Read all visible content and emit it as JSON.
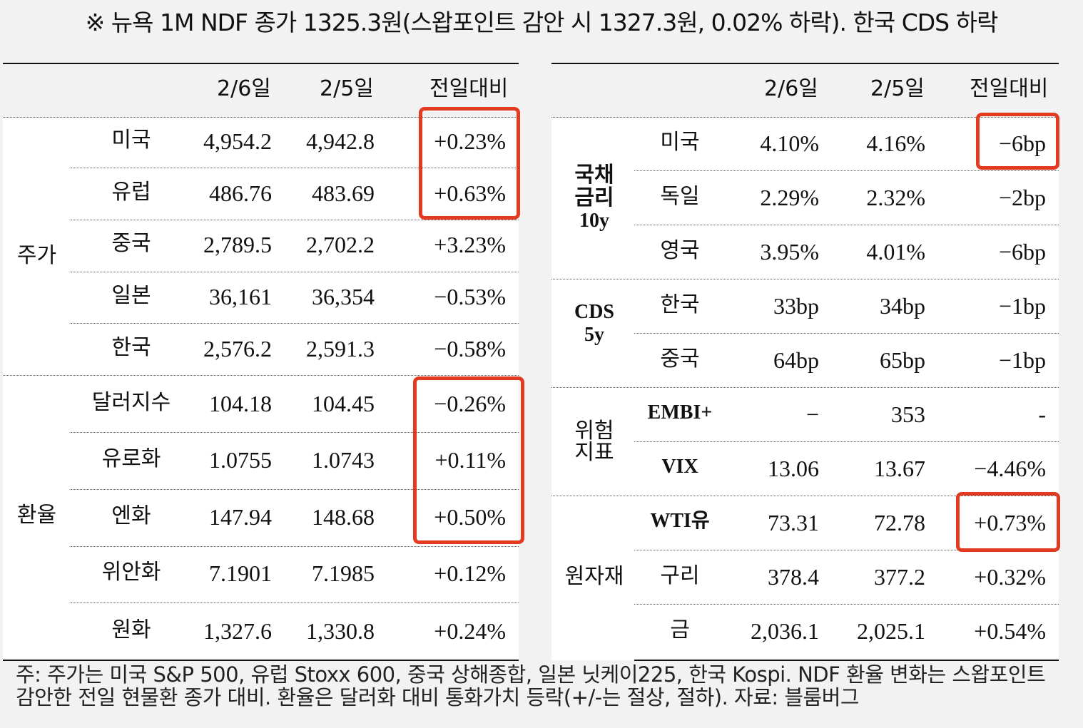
{
  "headline": "※ 뉴욕 1M NDF 종가 1325.3원(스왑포인트 감안 시 1327.3원, 0.02% 하락). 한국 CDS 하락",
  "left_table": {
    "headers": [
      "2/6일",
      "2/5일",
      "전일대비"
    ],
    "groups": [
      {
        "name": "주가",
        "rows": [
          {
            "label": "미국",
            "d1": "4,954.2",
            "d2": "4,942.8",
            "chg": "+0.23%"
          },
          {
            "label": "유럽",
            "d1": "486.76",
            "d2": "483.69",
            "chg": "+0.63%"
          },
          {
            "label": "중국",
            "d1": "2,789.5",
            "d2": "2,702.2",
            "chg": "+3.23%"
          },
          {
            "label": "일본",
            "d1": "36,161",
            "d2": "36,354",
            "chg": "−0.53%"
          },
          {
            "label": "한국",
            "d1": "2,576.2",
            "d2": "2,591.3",
            "chg": "−0.58%"
          }
        ]
      },
      {
        "name": "환율",
        "rows": [
          {
            "label": "달러지수",
            "d1": "104.18",
            "d2": "104.45",
            "chg": "−0.26%"
          },
          {
            "label": "유로화",
            "d1": "1.0755",
            "d2": "1.0743",
            "chg": "+0.11%"
          },
          {
            "label": "엔화",
            "d1": "147.94",
            "d2": "148.68",
            "chg": "+0.50%"
          },
          {
            "label": "위안화",
            "d1": "7.1901",
            "d2": "7.1985",
            "chg": "+0.12%"
          },
          {
            "label": "원화",
            "d1": "1,327.6",
            "d2": "1,330.8",
            "chg": "+0.24%"
          }
        ]
      }
    ]
  },
  "right_table": {
    "headers": [
      "2/6일",
      "2/5일",
      "전일대비"
    ],
    "groups": [
      {
        "name_lines": [
          "국채",
          "금리",
          "10y"
        ],
        "rows": [
          {
            "label": "미국",
            "d1": "4.10%",
            "d2": "4.16%",
            "chg": "−6bp"
          },
          {
            "label": "독일",
            "d1": "2.29%",
            "d2": "2.32%",
            "chg": "−2bp"
          },
          {
            "label": "영국",
            "d1": "3.95%",
            "d2": "4.01%",
            "chg": "−6bp"
          }
        ]
      },
      {
        "name_lines": [
          "CDS",
          "5y"
        ],
        "rows": [
          {
            "label": "한국",
            "d1": "33bp",
            "d2": "34bp",
            "chg": "−1bp"
          },
          {
            "label": "중국",
            "d1": "64bp",
            "d2": "65bp",
            "chg": "−1bp"
          }
        ]
      },
      {
        "name_lines": [
          "위험",
          "지표"
        ],
        "rows": [
          {
            "label": "EMBI+",
            "d1": "−",
            "d2": "353",
            "chg": "-"
          },
          {
            "label": "VIX",
            "d1": "13.06",
            "d2": "13.67",
            "chg": "−4.46%"
          }
        ]
      },
      {
        "name_lines": [
          "원자재"
        ],
        "rows": [
          {
            "label": "WTI유",
            "d1": "73.31",
            "d2": "72.78",
            "chg": "+0.73%"
          },
          {
            "label": "구리",
            "d1": "378.4",
            "d2": "377.2",
            "chg": "+0.32%"
          },
          {
            "label": "금",
            "d1": "2,036.1",
            "d2": "2,025.1",
            "chg": "+0.54%"
          }
        ]
      }
    ]
  },
  "footnote": {
    "line1": "주: 주가는 미국 S&P 500, 유럽 Stoxx 600, 중국 상해종합, 일본 닛케이225, 한국 Kospi. NDF 환율 변화는 스왑포인트",
    "line2": "감안한 전일 현물환 종가 대비. 환율은 달러화 대비 통화가치 등락(+/-는 절상, 절하). 자료: 블룸버그"
  },
  "colors": {
    "highlight": "#e23b22",
    "header_band": "#f2f2f2"
  }
}
